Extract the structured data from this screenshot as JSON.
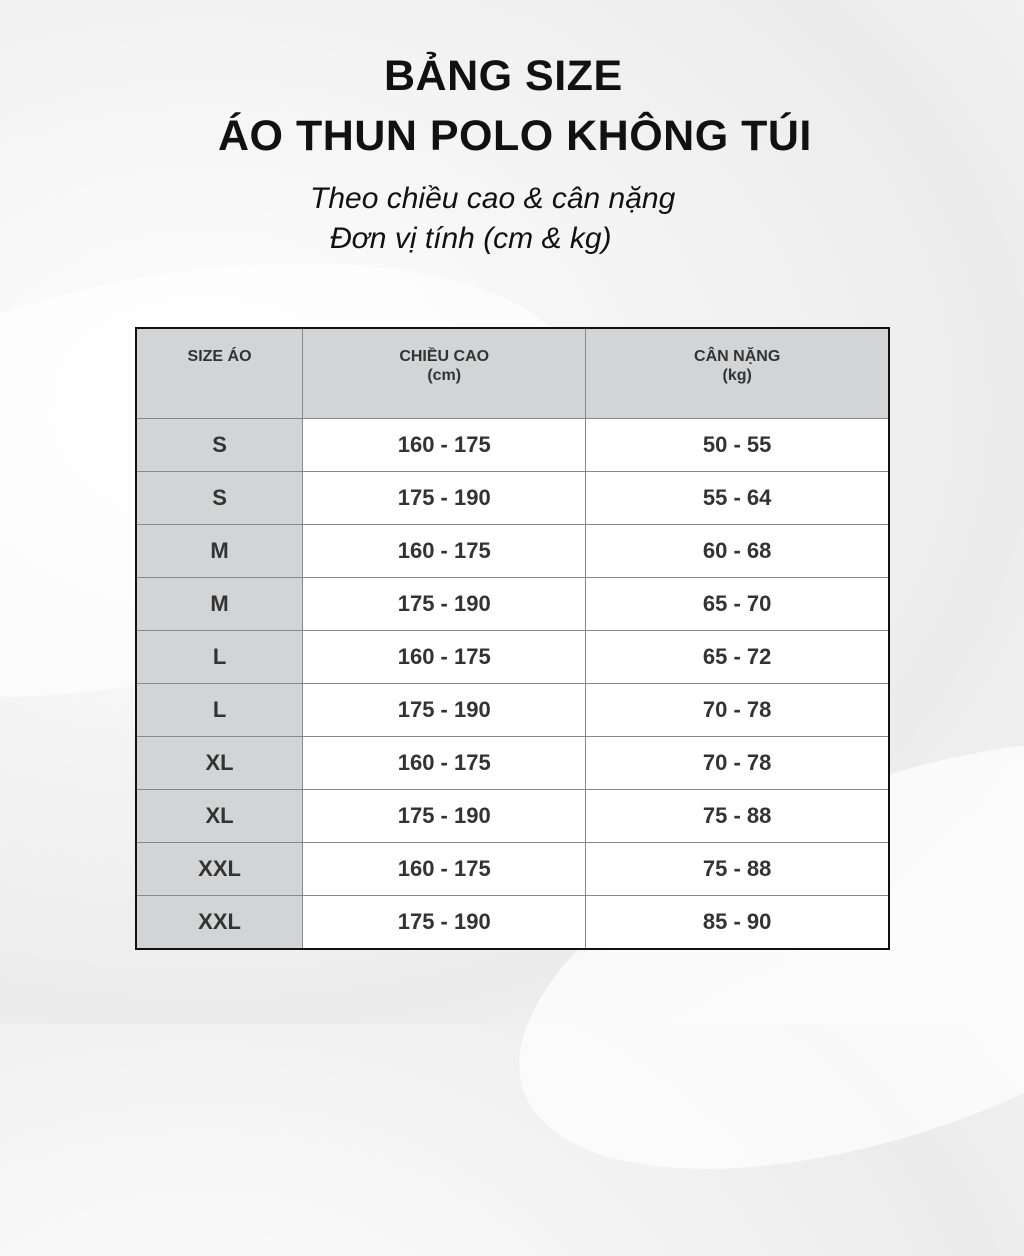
{
  "title_line1": "BẢNG SIZE",
  "title_line2": "ÁO THUN POLO KHÔNG TÚI",
  "subtitle_line1": "Theo chiều cao & cân nặng",
  "subtitle_line2": "Đơn vị tính (cm & kg)",
  "table": {
    "headers": [
      {
        "label": "SIZE ÁO",
        "unit": ""
      },
      {
        "label": "CHIỀU CAO",
        "unit": "(cm)"
      },
      {
        "label": "CÂN NẶNG",
        "unit": "(kg)"
      }
    ],
    "rows": [
      [
        "S",
        "160 - 175",
        "50 - 55"
      ],
      [
        "S",
        "175 - 190",
        "55 - 64"
      ],
      [
        "M",
        "160 - 175",
        "60 - 68"
      ],
      [
        "M",
        "175 - 190",
        "65 - 70"
      ],
      [
        "L",
        "160 - 175",
        "65 - 72"
      ],
      [
        "L",
        "175 - 190",
        "70 - 78"
      ],
      [
        "XL",
        "160 - 175",
        "70 - 78"
      ],
      [
        "XL",
        "175 - 190",
        "75 - 88"
      ],
      [
        "XXL",
        "160 - 175",
        "75 - 88"
      ],
      [
        "XXL",
        "175 - 190",
        "85 - 90"
      ]
    ]
  }
}
